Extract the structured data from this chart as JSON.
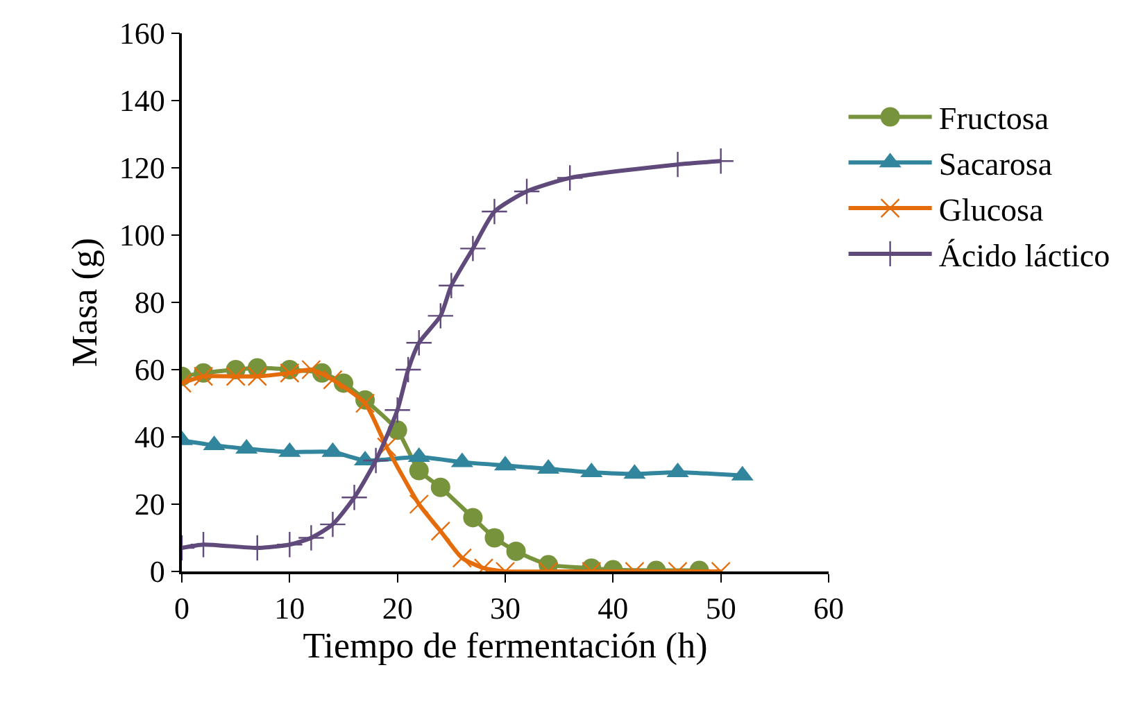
{
  "chart_data": {
    "type": "line",
    "xlabel": "Tiempo de fermentación (h)",
    "ylabel": "Masa (g)",
    "xlim": [
      0,
      60
    ],
    "xticks": [
      0,
      10,
      20,
      30,
      40,
      50,
      60
    ],
    "ylim": [
      0,
      160
    ],
    "yticks": [
      0,
      20,
      40,
      60,
      80,
      100,
      120,
      140,
      160
    ],
    "legend": "right",
    "series": [
      {
        "name": "Fructosa",
        "color": "#77933c",
        "marker": "circle",
        "x": [
          0,
          2,
          5,
          7,
          10,
          13,
          15,
          17,
          20,
          22,
          24,
          27,
          29,
          31,
          34,
          38,
          40,
          44,
          48
        ],
        "values": [
          58,
          59,
          60,
          60.5,
          60,
          59,
          56,
          51,
          42,
          30,
          25,
          16,
          10,
          6,
          2,
          1,
          0.5,
          0.3,
          0.3
        ]
      },
      {
        "name": "Sacarosa",
        "color": "#31859c",
        "marker": "triangle",
        "x": [
          0,
          3,
          6,
          10,
          14,
          17,
          22,
          26,
          30,
          34,
          38,
          42,
          46,
          52
        ],
        "values": [
          39,
          37.5,
          36.5,
          35.5,
          35.5,
          33,
          34,
          32.5,
          31.5,
          30.5,
          29.5,
          29,
          29.5,
          28.5
        ]
      },
      {
        "name": "Glucosa",
        "color": "#e46c0a",
        "marker": "cross",
        "x": [
          0,
          2,
          5,
          7,
          10,
          12,
          14,
          17,
          19,
          22,
          24,
          26,
          28,
          30,
          34,
          38,
          42,
          46,
          50
        ],
        "values": [
          56,
          58,
          58,
          58,
          59,
          60,
          57,
          50,
          37,
          20,
          12,
          4,
          1,
          0,
          0,
          0,
          0,
          0,
          0
        ]
      },
      {
        "name": "Ácido láctico",
        "color": "#604a7b",
        "marker": "plus",
        "x": [
          0,
          2,
          7,
          10,
          12,
          14,
          16,
          18,
          20,
          21,
          22,
          24,
          25,
          27,
          29,
          32,
          36,
          46,
          50
        ],
        "values": [
          7,
          8,
          7,
          8,
          10,
          14,
          22,
          33,
          48,
          60,
          68,
          76,
          85,
          96,
          107,
          113,
          117,
          121,
          122
        ]
      }
    ]
  }
}
